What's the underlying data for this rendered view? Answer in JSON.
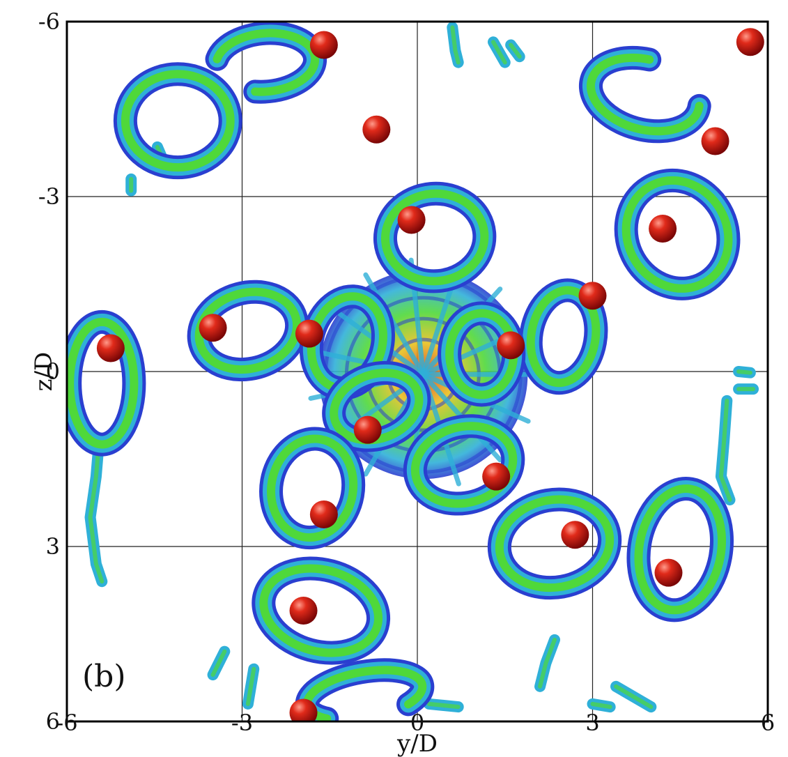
{
  "chart_data": {
    "type": "scatter",
    "panel_label": "(b)",
    "xlabel": "y/D",
    "ylabel": "z/D",
    "xlim": [
      -6,
      6
    ],
    "ylim": [
      -6,
      6
    ],
    "y_axis_inverted": true,
    "grid": true,
    "x_ticks": [
      -6,
      -3,
      0,
      3,
      6
    ],
    "x_tick_labels": [
      "-6",
      "-3",
      "0",
      "3",
      "6"
    ],
    "y_ticks": [
      -6,
      -3,
      0,
      3,
      6
    ],
    "y_tick_labels": [
      "-6",
      "-3",
      "0",
      "3",
      "6"
    ],
    "colors": {
      "ring_outer": "#2a3fd0",
      "ring_mid": "#2fb0d8",
      "ring_inner": "#4fd83a",
      "core_hot": "#e8c020",
      "core_red": "#d83a20",
      "sphere": "#d01414"
    },
    "rings": [
      {
        "cy": -4.1,
        "cz": -4.3,
        "rx": 0.9,
        "ry": 0.8,
        "rot": 0,
        "type": "closed"
      },
      {
        "cy": -2.6,
        "cz": -5.3,
        "rx": 0.85,
        "ry": 0.5,
        "rot": -5,
        "type": "open",
        "open": 150
      },
      {
        "cy": 3.9,
        "cz": -4.75,
        "rx": 0.95,
        "ry": 0.6,
        "rot": 15,
        "type": "open",
        "open": -50
      },
      {
        "cy": 0.3,
        "cz": -2.3,
        "rx": 0.85,
        "ry": 0.75,
        "rot": -5,
        "type": "closed"
      },
      {
        "cy": 4.45,
        "cz": -2.35,
        "rx": 0.85,
        "ry": 0.95,
        "rot": -30,
        "type": "closed"
      },
      {
        "cy": -2.9,
        "cz": -0.7,
        "rx": 0.85,
        "ry": 0.65,
        "rot": -15,
        "type": "closed"
      },
      {
        "cy": -1.2,
        "cz": -0.5,
        "rx": 0.6,
        "ry": 0.8,
        "rot": 15,
        "type": "closed"
      },
      {
        "cy": 2.5,
        "cz": -0.6,
        "rx": 0.55,
        "ry": 0.8,
        "rot": 10,
        "type": "closed"
      },
      {
        "cy": -5.4,
        "cz": 0.2,
        "rx": 0.55,
        "ry": 1.05,
        "rot": 0,
        "type": "closed"
      },
      {
        "cy": 1.1,
        "cz": -0.3,
        "rx": 0.55,
        "ry": 0.7,
        "rot": 0,
        "type": "closed"
      },
      {
        "cy": -0.7,
        "cz": 0.6,
        "rx": 0.75,
        "ry": 0.55,
        "rot": -20,
        "type": "closed"
      },
      {
        "cy": -1.8,
        "cz": 2.0,
        "rx": 0.7,
        "ry": 0.85,
        "rot": 10,
        "type": "closed"
      },
      {
        "cy": 0.8,
        "cz": 1.6,
        "rx": 0.85,
        "ry": 0.65,
        "rot": -15,
        "type": "closed"
      },
      {
        "cy": 2.35,
        "cz": 2.95,
        "rx": 0.95,
        "ry": 0.75,
        "rot": -10,
        "type": "closed"
      },
      {
        "cy": 4.5,
        "cz": 3.05,
        "rx": 0.7,
        "ry": 1.05,
        "rot": 10,
        "type": "closed"
      },
      {
        "cy": -1.65,
        "cz": 4.1,
        "rx": 1.0,
        "ry": 0.7,
        "rot": 15,
        "type": "closed"
      },
      {
        "cy": -0.9,
        "cz": 5.55,
        "rx": 1.0,
        "ry": 0.4,
        "rot": -10,
        "type": "open",
        "open": 90
      }
    ],
    "tubes": [
      {
        "y": [
          -5.45,
          -5.5,
          -5.6,
          -5.5,
          -5.4
        ],
        "z": [
          1.2,
          1.8,
          2.5,
          3.3,
          3.6
        ]
      },
      {
        "y": [
          5.3,
          5.25,
          5.2,
          5.35
        ],
        "z": [
          0.5,
          1.2,
          1.8,
          2.2
        ]
      },
      {
        "y": [
          0.6,
          0.65,
          0.7
        ],
        "z": [
          -5.9,
          -5.5,
          -5.3
        ]
      },
      {
        "y": [
          -2.8,
          -2.85,
          -2.9
        ],
        "z": [
          5.1,
          5.4,
          5.7
        ]
      },
      {
        "y": [
          2.1,
          2.2,
          2.35
        ],
        "z": [
          5.4,
          5.0,
          4.6
        ]
      },
      {
        "y": [
          -3.5,
          -3.4,
          -3.3
        ],
        "z": [
          5.2,
          5.0,
          4.8
        ]
      },
      {
        "y": [
          -4.9,
          -4.9
        ],
        "z": [
          -3.3,
          -3.1
        ]
      },
      {
        "y": [
          5.5,
          5.7
        ],
        "z": [
          0.0,
          0.02
        ]
      },
      {
        "y": [
          5.5,
          5.75
        ],
        "z": [
          0.3,
          0.3
        ]
      },
      {
        "y": [
          -4.45,
          -4.3
        ],
        "z": [
          -3.85,
          -3.5
        ]
      },
      {
        "y": [
          1.75,
          1.6
        ],
        "z": [
          -5.4,
          -5.6
        ]
      },
      {
        "y": [
          1.3,
          1.5
        ],
        "z": [
          -5.65,
          -5.3
        ]
      },
      {
        "y": [
          3.4,
          4.0
        ],
        "z": [
          5.4,
          5.75
        ]
      },
      {
        "y": [
          0.2,
          0.7
        ],
        "z": [
          5.7,
          5.75
        ]
      },
      {
        "y": [
          3.0,
          3.3
        ],
        "z": [
          5.7,
          5.75
        ]
      }
    ],
    "spheres": [
      {
        "y": -1.6,
        "z": -5.6
      },
      {
        "y": 5.7,
        "z": -5.65
      },
      {
        "y": -0.7,
        "z": -4.15
      },
      {
        "y": 5.1,
        "z": -3.95
      },
      {
        "y": -0.1,
        "z": -2.6
      },
      {
        "y": 4.2,
        "z": -2.45
      },
      {
        "y": 3.0,
        "z": -1.3
      },
      {
        "y": -3.5,
        "z": -0.75
      },
      {
        "y": -1.85,
        "z": -0.65
      },
      {
        "y": 1.6,
        "z": -0.45
      },
      {
        "y": -5.25,
        "z": -0.4
      },
      {
        "y": -0.85,
        "z": 1.0
      },
      {
        "y": 1.35,
        "z": 1.8
      },
      {
        "y": -1.6,
        "z": 2.45
      },
      {
        "y": 2.7,
        "z": 2.8
      },
      {
        "y": 4.3,
        "z": 3.45
      },
      {
        "y": -1.95,
        "z": 4.1
      },
      {
        "y": -1.95,
        "z": 5.85
      }
    ]
  }
}
